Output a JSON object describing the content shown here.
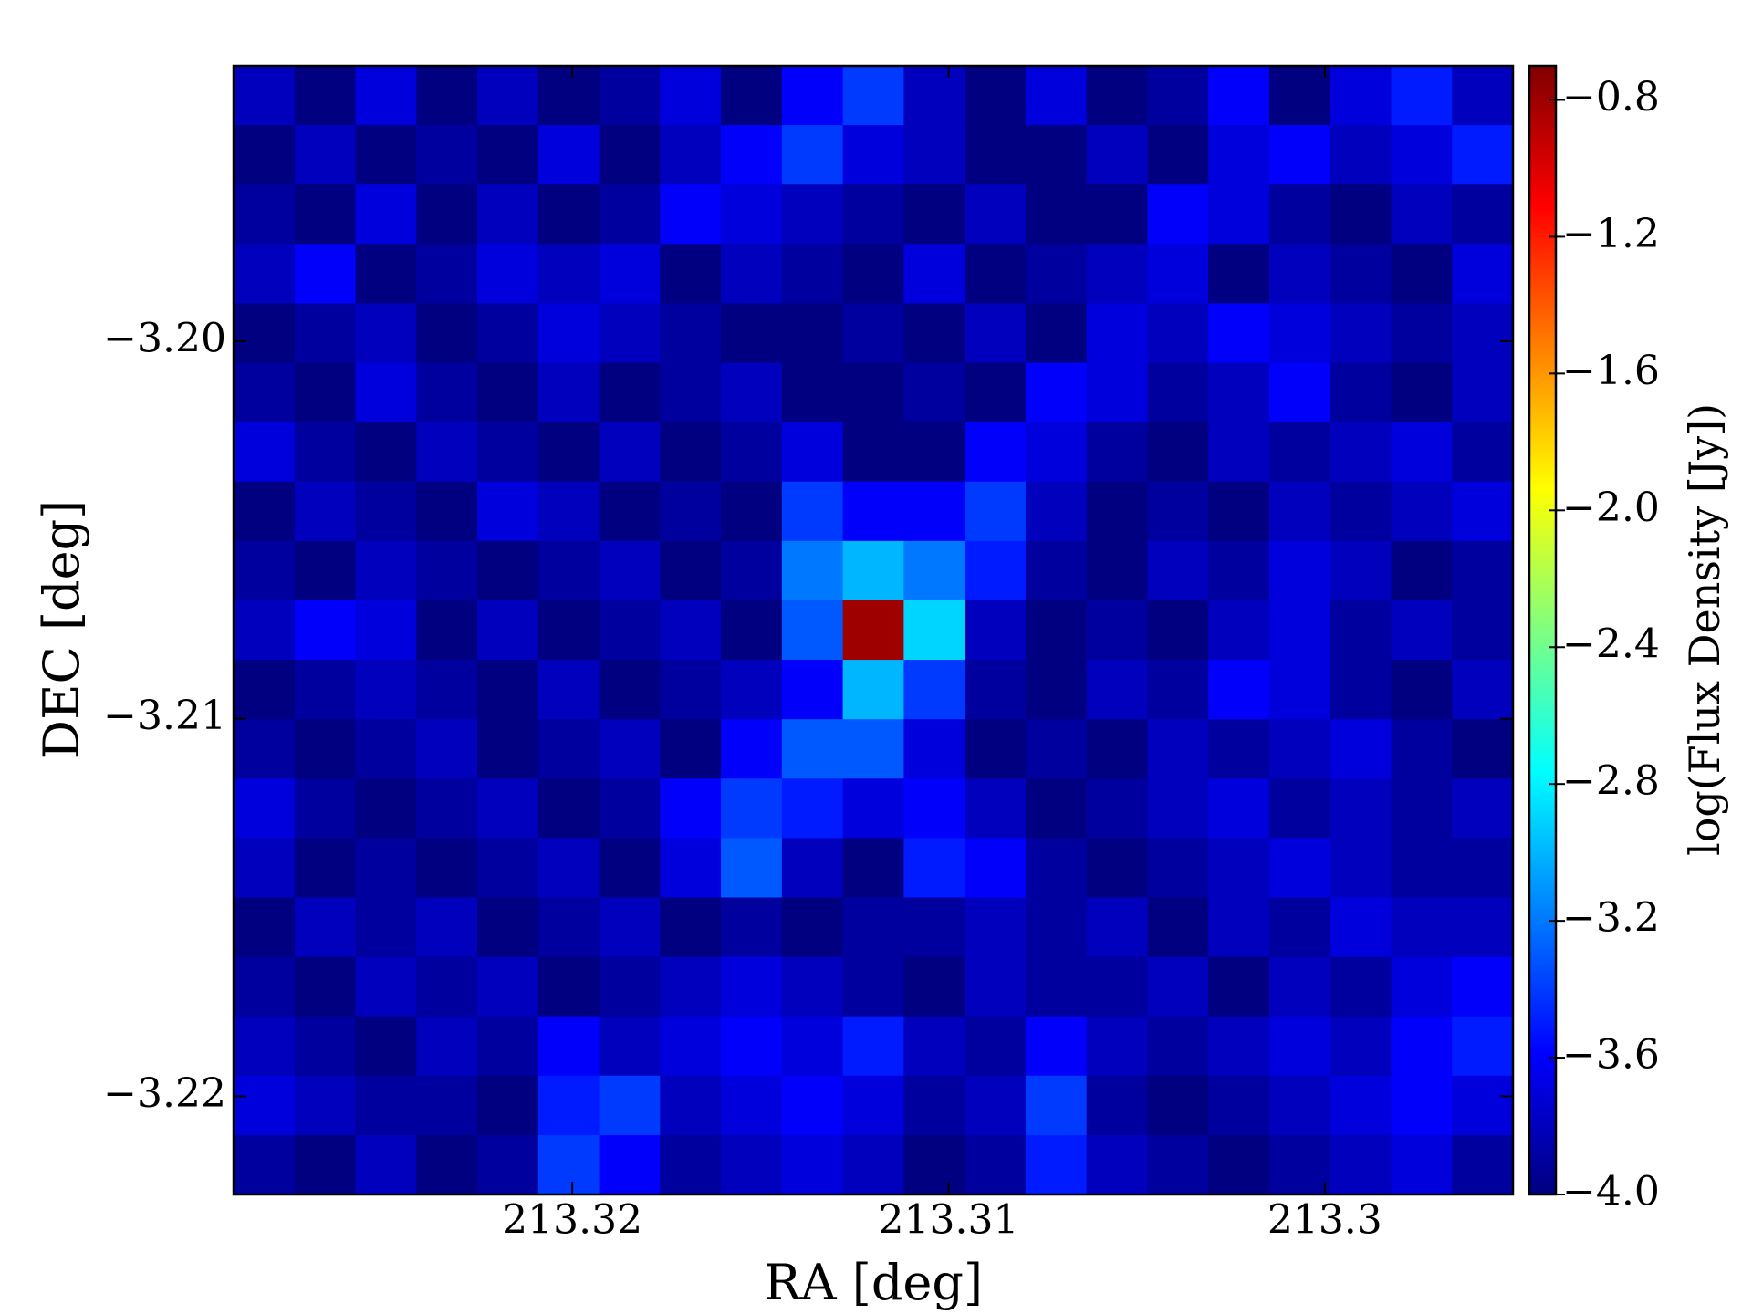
{
  "chart_data": {
    "type": "heatmap",
    "xlabel": "RA [deg]",
    "ylabel": "DEC [deg]",
    "colorbar_label": "log(Flux Density [Jy])",
    "colormap": "jet",
    "xlim": [
      213.329,
      213.295
    ],
    "ylim": [
      -3.2226,
      -3.1927
    ],
    "xticks": [
      213.32,
      213.31,
      213.3
    ],
    "yticks": [
      {
        "value": -3.2,
        "label": "−3.20"
      },
      {
        "value": -3.21,
        "label": "−3.21"
      },
      {
        "value": -3.22,
        "label": "−3.22"
      }
    ],
    "clim": [
      -4.0,
      -0.7
    ],
    "cticks": [
      {
        "value": -0.8,
        "label": "−0.8"
      },
      {
        "value": -1.2,
        "label": "−1.2"
      },
      {
        "value": -1.6,
        "label": "−1.6"
      },
      {
        "value": -2.0,
        "label": "−2.0"
      },
      {
        "value": -2.4,
        "label": "−2.4"
      },
      {
        "value": -2.8,
        "label": "−2.8"
      },
      {
        "value": -3.2,
        "label": "−3.2"
      },
      {
        "value": -3.6,
        "label": "−3.6"
      },
      {
        "value": -4.0,
        "label": "−4.0"
      }
    ],
    "values": [
      [
        -3.8,
        -4.0,
        -3.7,
        -4.0,
        -3.8,
        -4.0,
        -3.9,
        -3.7,
        -4.0,
        -3.6,
        -3.4,
        -3.8,
        -4.0,
        -3.7,
        -4.0,
        -3.9,
        -3.6,
        -4.0,
        -3.7,
        -3.5,
        -3.8
      ],
      [
        -4.0,
        -3.8,
        -4.0,
        -3.9,
        -4.0,
        -3.7,
        -4.0,
        -3.8,
        -3.6,
        -3.4,
        -3.7,
        -3.8,
        -4.0,
        -4.0,
        -3.8,
        -4.0,
        -3.7,
        -3.6,
        -3.8,
        -3.7,
        -3.5
      ],
      [
        -3.9,
        -4.0,
        -3.7,
        -4.0,
        -3.8,
        -4.0,
        -3.9,
        -3.6,
        -3.7,
        -3.8,
        -3.9,
        -4.0,
        -3.8,
        -4.0,
        -4.0,
        -3.6,
        -3.7,
        -3.9,
        -4.0,
        -3.8,
        -3.9
      ],
      [
        -3.8,
        -3.6,
        -4.0,
        -3.9,
        -3.7,
        -3.8,
        -3.7,
        -4.0,
        -3.8,
        -3.9,
        -4.0,
        -3.7,
        -4.0,
        -3.9,
        -3.8,
        -3.7,
        -4.0,
        -3.8,
        -3.9,
        -4.0,
        -3.7
      ],
      [
        -4.0,
        -3.9,
        -3.8,
        -4.0,
        -3.9,
        -3.7,
        -3.8,
        -3.9,
        -4.0,
        -4.0,
        -3.9,
        -4.0,
        -3.8,
        -4.0,
        -3.7,
        -3.8,
        -3.6,
        -3.7,
        -3.8,
        -3.9,
        -3.8
      ],
      [
        -3.9,
        -4.0,
        -3.7,
        -3.9,
        -4.0,
        -3.8,
        -4.0,
        -3.9,
        -3.8,
        -4.0,
        -4.0,
        -3.9,
        -4.0,
        -3.6,
        -3.7,
        -3.9,
        -3.8,
        -3.6,
        -3.9,
        -4.0,
        -3.8
      ],
      [
        -3.7,
        -3.9,
        -4.0,
        -3.8,
        -3.9,
        -4.0,
        -3.8,
        -4.0,
        -3.9,
        -3.7,
        -4.0,
        -4.0,
        -3.6,
        -3.7,
        -3.9,
        -4.0,
        -3.8,
        -3.9,
        -3.8,
        -3.7,
        -3.9
      ],
      [
        -4.0,
        -3.8,
        -3.9,
        -4.0,
        -3.7,
        -3.8,
        -4.0,
        -3.9,
        -4.0,
        -3.4,
        -3.6,
        -3.6,
        -3.4,
        -3.8,
        -4.0,
        -3.9,
        -4.0,
        -3.8,
        -3.9,
        -3.8,
        -3.7
      ],
      [
        -3.9,
        -4.0,
        -3.8,
        -3.9,
        -4.0,
        -3.9,
        -3.8,
        -4.0,
        -3.9,
        -3.2,
        -3.0,
        -3.2,
        -3.5,
        -3.9,
        -4.0,
        -3.8,
        -3.9,
        -3.7,
        -3.8,
        -4.0,
        -3.9
      ],
      [
        -3.8,
        -3.6,
        -3.7,
        -4.0,
        -3.8,
        -4.0,
        -3.9,
        -3.8,
        -4.0,
        -3.3,
        -0.8,
        -2.9,
        -3.8,
        -4.0,
        -3.9,
        -4.0,
        -3.8,
        -3.7,
        -3.9,
        -3.8,
        -3.9
      ],
      [
        -4.0,
        -3.9,
        -3.8,
        -3.9,
        -4.0,
        -3.8,
        -4.0,
        -3.9,
        -3.8,
        -3.6,
        -3.0,
        -3.4,
        -3.9,
        -4.0,
        -3.8,
        -3.9,
        -3.6,
        -3.7,
        -3.9,
        -4.0,
        -3.8
      ],
      [
        -3.9,
        -4.0,
        -3.9,
        -3.8,
        -4.0,
        -3.9,
        -3.8,
        -4.0,
        -3.6,
        -3.3,
        -3.3,
        -3.7,
        -4.0,
        -3.9,
        -4.0,
        -3.8,
        -3.9,
        -3.8,
        -3.7,
        -3.9,
        -4.0
      ],
      [
        -3.7,
        -3.9,
        -4.0,
        -3.9,
        -3.8,
        -4.0,
        -3.9,
        -3.6,
        -3.4,
        -3.5,
        -3.7,
        -3.6,
        -3.8,
        -4.0,
        -3.9,
        -3.8,
        -3.7,
        -3.9,
        -3.8,
        -3.9,
        -3.8
      ],
      [
        -3.8,
        -4.0,
        -3.9,
        -4.0,
        -3.9,
        -3.8,
        -4.0,
        -3.7,
        -3.3,
        -3.8,
        -4.0,
        -3.5,
        -3.6,
        -3.9,
        -4.0,
        -3.9,
        -3.8,
        -3.7,
        -3.8,
        -3.9,
        -3.9
      ],
      [
        -4.0,
        -3.8,
        -3.9,
        -3.8,
        -4.0,
        -3.9,
        -3.8,
        -4.0,
        -3.9,
        -4.0,
        -3.9,
        -3.9,
        -3.8,
        -3.9,
        -3.8,
        -4.0,
        -3.8,
        -3.9,
        -3.7,
        -3.8,
        -3.8
      ],
      [
        -3.9,
        -4.0,
        -3.8,
        -3.9,
        -3.8,
        -4.0,
        -3.9,
        -3.8,
        -3.7,
        -3.8,
        -3.9,
        -4.0,
        -3.8,
        -3.9,
        -3.9,
        -3.8,
        -4.0,
        -3.8,
        -3.9,
        -3.7,
        -3.6
      ],
      [
        -3.8,
        -3.9,
        -4.0,
        -3.8,
        -3.9,
        -3.6,
        -3.8,
        -3.7,
        -3.6,
        -3.7,
        -3.5,
        -3.8,
        -3.9,
        -3.6,
        -3.8,
        -3.9,
        -3.8,
        -3.7,
        -3.8,
        -3.6,
        -3.5
      ],
      [
        -3.7,
        -3.8,
        -3.9,
        -3.9,
        -4.0,
        -3.5,
        -3.4,
        -3.8,
        -3.7,
        -3.6,
        -3.7,
        -3.9,
        -3.8,
        -3.4,
        -3.9,
        -4.0,
        -3.9,
        -3.8,
        -3.7,
        -3.6,
        -3.7
      ],
      [
        -3.9,
        -4.0,
        -3.8,
        -4.0,
        -3.9,
        -3.4,
        -3.6,
        -3.9,
        -3.8,
        -3.7,
        -3.8,
        -4.0,
        -3.9,
        -3.5,
        -3.8,
        -3.9,
        -4.0,
        -3.9,
        -3.8,
        -3.7,
        -3.9
      ]
    ]
  }
}
